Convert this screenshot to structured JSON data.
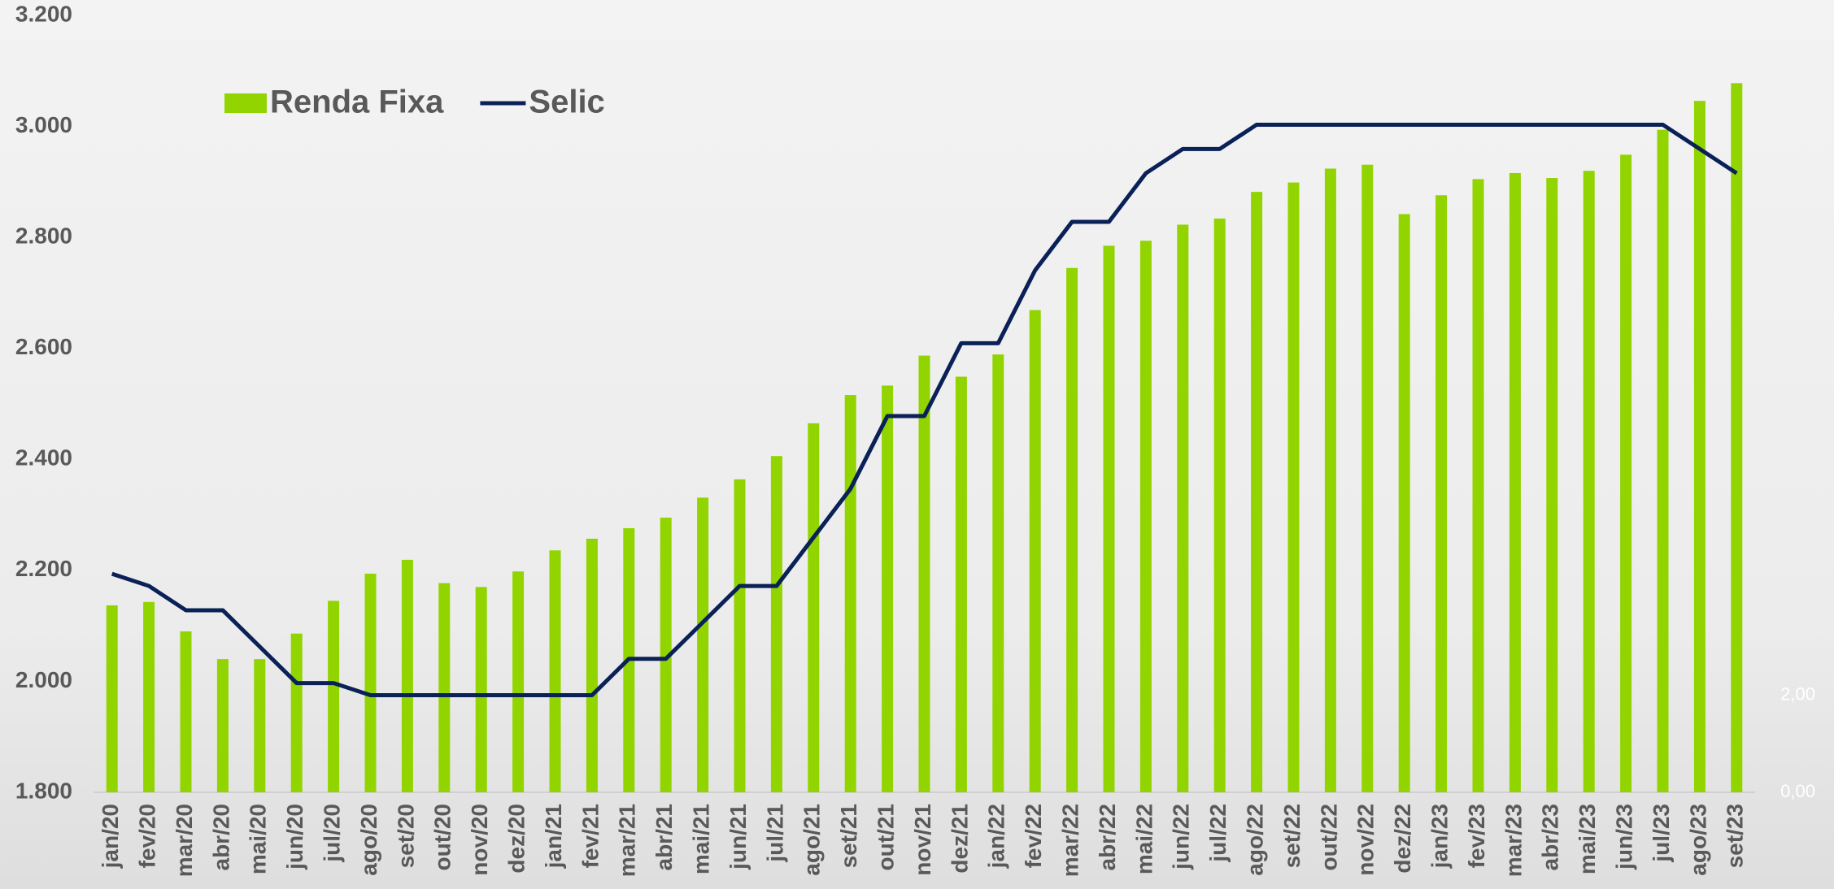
{
  "chart_data": {
    "type": "bar_line",
    "categories": [
      "jan/20",
      "fev/20",
      "mar/20",
      "abr/20",
      "mai/20",
      "jun/20",
      "jul/20",
      "ago/20",
      "set/20",
      "out/20",
      "nov/20",
      "dez/20",
      "jan/21",
      "fev/21",
      "mar/21",
      "abr/21",
      "mai/21",
      "jun/21",
      "jul/21",
      "ago/21",
      "set/21",
      "out/21",
      "nov/21",
      "dez/21",
      "jan/22",
      "fev/22",
      "mar/22",
      "abr/22",
      "mai/22",
      "jun/22",
      "jul/22",
      "ago/22",
      "set/22",
      "out/22",
      "nov/22",
      "dez/22",
      "jan/23",
      "fev/23",
      "mar/23",
      "abr/23",
      "mai/23",
      "jun/23",
      "jul/23",
      "ago/23",
      "set/23"
    ],
    "series": [
      {
        "name": "Renda Fixa",
        "type": "bar",
        "color": "#92d400",
        "values": [
          2137,
          2143,
          2090,
          2040,
          2040,
          2086,
          2145,
          2194,
          2219,
          2177,
          2170,
          2198,
          2236,
          2257,
          2276,
          2295,
          2331,
          2364,
          2406,
          2465,
          2516,
          2533,
          2587,
          2549,
          2589,
          2669,
          2745,
          2785,
          2794,
          2823,
          2834,
          2882,
          2899,
          2924,
          2931,
          2842,
          2876,
          2905,
          2916,
          2907,
          2920,
          2949,
          2994,
          3046,
          3078
        ]
      },
      {
        "name": "Selic",
        "type": "line",
        "axis": "y2",
        "color": "#0a2158",
        "values": [
          4.5,
          4.25,
          3.75,
          3.75,
          3.0,
          2.25,
          2.25,
          2.0,
          2.0,
          2.0,
          2.0,
          2.0,
          2.0,
          2.0,
          2.75,
          2.75,
          3.5,
          4.25,
          4.25,
          5.25,
          6.25,
          7.75,
          7.75,
          9.25,
          9.25,
          10.75,
          11.75,
          11.75,
          12.75,
          13.25,
          13.25,
          13.75,
          13.75,
          13.75,
          13.75,
          13.75,
          13.75,
          13.75,
          13.75,
          13.75,
          13.75,
          13.75,
          13.75,
          13.25,
          12.75
        ]
      }
    ],
    "ylim": [
      1800,
      3200
    ],
    "yticks": [
      {
        "value": 1800,
        "label": "1.800"
      },
      {
        "value": 2000,
        "label": "2.000"
      },
      {
        "value": 2200,
        "label": "2.200"
      },
      {
        "value": 2400,
        "label": "2.400"
      },
      {
        "value": 2600,
        "label": "2.600"
      },
      {
        "value": 2800,
        "label": "2.800"
      },
      {
        "value": 3000,
        "label": "3.000"
      },
      {
        "value": 3200,
        "label": "3.200"
      }
    ],
    "y2lim": [
      0,
      16
    ],
    "y2ticks": [
      {
        "value": 0,
        "label": "0,00"
      },
      {
        "value": 2,
        "label": "2,00"
      }
    ]
  }
}
